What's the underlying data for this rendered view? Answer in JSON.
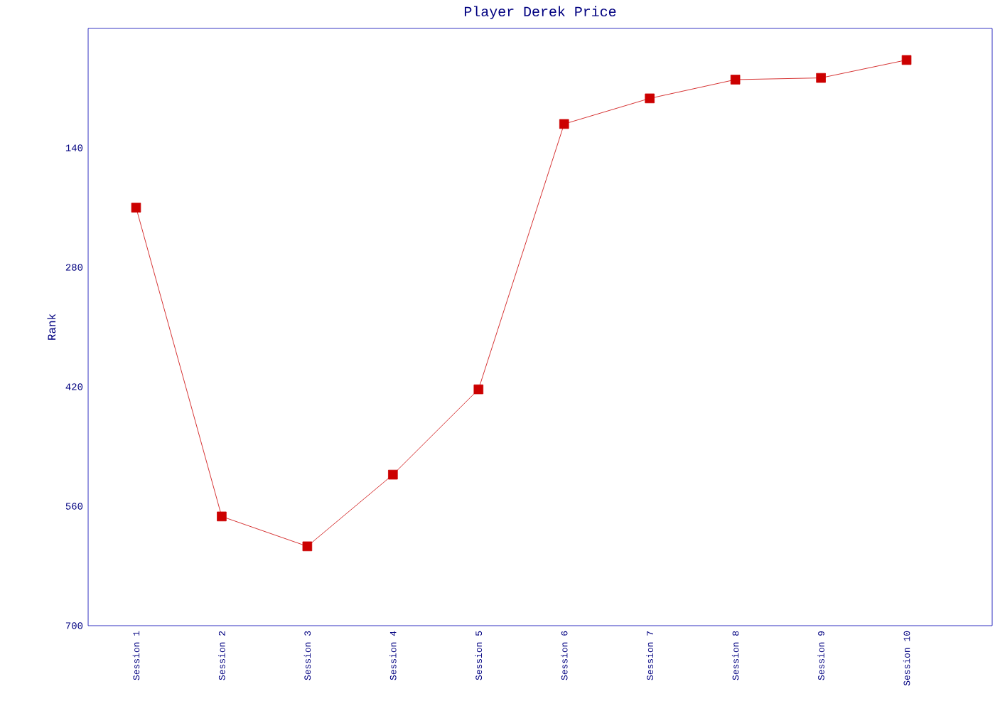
{
  "chart_data": {
    "type": "line",
    "title": "Player Derek Price",
    "ylabel": "Rank",
    "categories": [
      "Session 1",
      "Session 2",
      "Session 3",
      "Session 4",
      "Session 5",
      "Session 6",
      "Session 7",
      "Session 8",
      "Session 9",
      "Session 10"
    ],
    "series": [
      {
        "color": "#cc0000",
        "values": [
          210,
          572,
          607,
          523,
          423,
          112,
          82,
          60,
          58,
          37
        ]
      }
    ],
    "ylim": [
      700,
      0
    ],
    "yticks": [
      140,
      280,
      420,
      560,
      700
    ],
    "marker": "square",
    "line_style": "solid"
  }
}
